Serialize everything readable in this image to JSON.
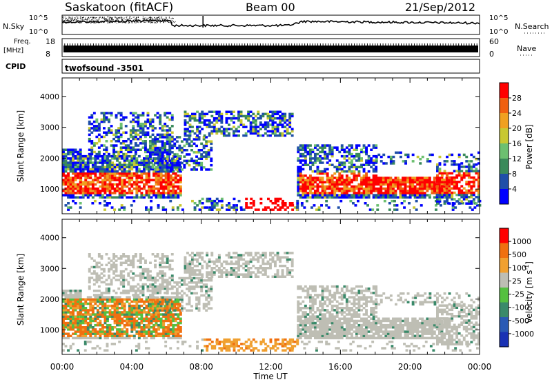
{
  "header": {
    "station": "Saskatoon (fitACF)",
    "beam": "Beam 00",
    "date": "21/Sep/2012"
  },
  "top_panels": {
    "nsky_label": "N.Sky",
    "nsearch_label": "N.Search",
    "nsky_ticks": [
      "10^5",
      "10^0"
    ],
    "nsearch_ticks": [
      "10^5",
      "10^0"
    ],
    "freq_label_line1": "Freq.",
    "freq_label_line2": "[MHz]",
    "freq_ticks": [
      "18",
      "8"
    ],
    "nave_label": "Nave",
    "nave_ticks": [
      "60",
      "0"
    ],
    "cpid_label": "CPID",
    "cpid_value": "twofsound -3501"
  },
  "colors": {
    "power": [
      "#0000ff",
      "#1f4fa8",
      "#3a8a5a",
      "#6cc070",
      "#c8c832",
      "#f0a020",
      "#f06010",
      "#ff0000"
    ],
    "velocity": [
      "#1a32b4",
      "#2a5ab4",
      "#3a8a6a",
      "#55c040",
      "#bebeb4",
      "#f0a030",
      "#f07010",
      "#ff0000"
    ]
  },
  "chart_data": [
    {
      "type": "heatmap",
      "quantity": "power",
      "ylabel": "Slant Range [km]",
      "yticks": [
        "1000",
        "2000",
        "3000",
        "4000"
      ],
      "ylim": [
        200,
        4600
      ],
      "xlim": [
        0,
        24
      ],
      "colorbar_label": "Power [dB]",
      "colorbar_ticks": [
        "28",
        "24",
        "20",
        "16",
        "12",
        "8",
        "4"
      ]
    },
    {
      "type": "heatmap",
      "quantity": "velocity",
      "ylabel": "Slant Range [km]",
      "yticks": [
        "1000",
        "2000",
        "3000",
        "4000"
      ],
      "ylim": [
        200,
        4600
      ],
      "xlim": [
        0,
        24
      ],
      "colorbar_label": "Velocity [m s",
      "colorbar_label_sup": "-1",
      "colorbar_label_close": "]",
      "colorbar_ticks": [
        "1000",
        "500",
        "100",
        "25",
        "-25",
        "-100",
        "-500",
        "-1000"
      ]
    }
  ],
  "xaxis": {
    "ticks": [
      "00:00",
      "04:00",
      "08:00",
      "12:00",
      "16:00",
      "20:00",
      "00:00"
    ],
    "label": "Time UT"
  }
}
